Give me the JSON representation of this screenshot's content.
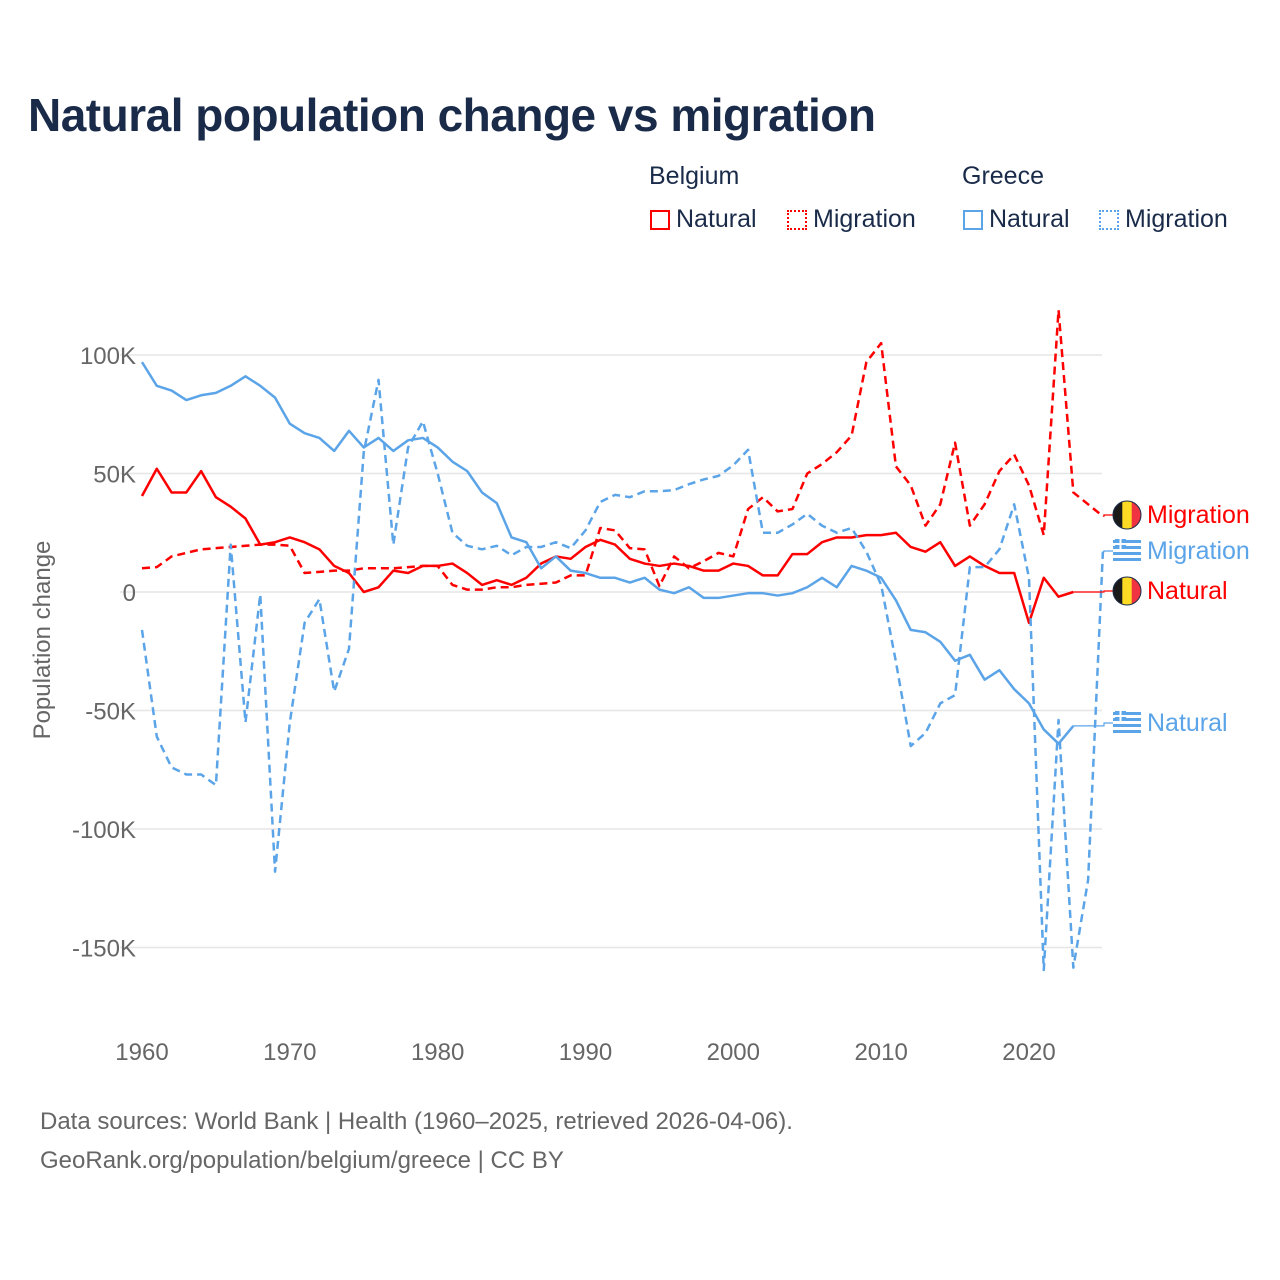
{
  "title": "Natural population change vs migration",
  "legend": {
    "groups": [
      {
        "name": "Belgium",
        "items": [
          "Natural",
          "Migration"
        ],
        "color": "#ff0000"
      },
      {
        "name": "Greece",
        "items": [
          "Natural",
          "Migration"
        ],
        "color": "#5ba4e8"
      }
    ]
  },
  "footer": {
    "line1": "Data sources: World Bank | Health (1960–2025, retrieved 2026-04-06).",
    "line2": "GeoRank.org/population/belgium/greece | CC BY"
  },
  "chart_data": {
    "type": "line",
    "title": "Natural population change vs migration",
    "xlabel": "",
    "ylabel": "Population change",
    "xlim": [
      1960,
      2025
    ],
    "ylim": [
      -165000,
      120000
    ],
    "x_ticks": [
      "1960",
      "1970",
      "1980",
      "1990",
      "2000",
      "2010",
      "2020"
    ],
    "y_ticks": [
      {
        "v": 100000,
        "label": "100K"
      },
      {
        "v": 50000,
        "label": "50K"
      },
      {
        "v": 0,
        "label": "0"
      },
      {
        "v": -50000,
        "label": "-50K"
      },
      {
        "v": -100000,
        "label": "-100K"
      },
      {
        "v": -150000,
        "label": "-150K"
      }
    ],
    "grid": true,
    "start_year": 1960,
    "series": [
      {
        "name": "Belgium Natural",
        "end_label": "Migration_",
        "label": "Natural",
        "country": "Belgium",
        "color": "#ff0000",
        "dashed": false,
        "values": [
          40.5,
          52,
          42,
          42,
          51,
          40,
          36,
          31,
          20,
          21,
          23,
          21,
          18,
          11,
          8,
          0,
          2,
          9,
          8,
          11,
          11,
          12,
          8,
          3,
          5,
          3,
          6,
          12,
          15,
          14,
          19,
          22,
          20,
          14,
          12,
          11,
          12,
          11,
          9,
          9,
          12,
          11,
          7,
          7,
          16,
          16,
          21,
          23,
          23,
          24,
          24,
          25,
          19,
          17,
          21,
          11,
          15,
          11,
          8,
          8,
          -13,
          6,
          -2,
          0
        ]
      },
      {
        "name": "Belgium Migration",
        "label": "Migration",
        "country": "Belgium",
        "color": "#ff0000",
        "dashed": true,
        "values": [
          10,
          10.5,
          15,
          16.5,
          18,
          18.5,
          19,
          19.5,
          20,
          20,
          19.5,
          8,
          8.5,
          9,
          9,
          10,
          10,
          10,
          10.5,
          11,
          11,
          3,
          1,
          1,
          2,
          2,
          3,
          3.5,
          4,
          7,
          7,
          27,
          26,
          18.5,
          18,
          2.5,
          15,
          10,
          13,
          16.5,
          15,
          35,
          40,
          34,
          35,
          50,
          54,
          59,
          66,
          97,
          105,
          53,
          45,
          28,
          37,
          63,
          28,
          37,
          51,
          58,
          45,
          24,
          119,
          42,
          37,
          32
        ]
      },
      {
        "name": "Greece Natural",
        "label": "Natural",
        "country": "Greece",
        "color": "#5ba4e8",
        "dashed": false,
        "values": [
          97,
          87,
          85,
          81,
          83,
          84,
          87,
          91,
          87,
          82,
          71,
          67,
          65,
          59.5,
          68,
          61,
          65,
          59.5,
          64,
          65,
          61,
          55,
          51,
          42,
          37.5,
          23,
          21,
          10,
          15,
          9,
          8,
          6,
          6,
          4,
          6,
          1,
          -0.5,
          2,
          -2.5,
          -2.5,
          -1.5,
          -0.5,
          -0.5,
          -1.5,
          -0.5,
          2,
          6,
          2,
          11,
          9,
          6,
          -3.5,
          -16,
          -17,
          -21,
          -29,
          -26.5,
          -37,
          -33,
          -41,
          -47,
          -58,
          -64,
          -56.5
        ]
      },
      {
        "name": "Greece Migration",
        "label": "Migration",
        "country": "Greece",
        "color": "#5ba4e8",
        "dashed": true,
        "values": [
          -16,
          -61,
          -74,
          -77,
          -77,
          -81.5,
          20,
          -55,
          -1,
          -118,
          -55,
          -13,
          -3,
          -42,
          -24,
          59,
          89.5,
          20,
          61,
          72,
          50,
          25,
          19.5,
          18,
          19.5,
          15.5,
          19,
          19,
          21,
          18.5,
          26,
          38,
          41,
          40,
          42.5,
          42.5,
          43,
          45.5,
          47.5,
          49,
          53.5,
          60,
          25,
          25,
          28.5,
          33,
          28,
          25,
          27,
          17,
          3,
          -29.5,
          -65,
          -59.5,
          -47,
          -43.5,
          10.5,
          10.5,
          18,
          37,
          6,
          -159.5,
          -54,
          -158.5,
          -121.5,
          17
        ]
      }
    ],
    "values_unit": "thousands"
  }
}
